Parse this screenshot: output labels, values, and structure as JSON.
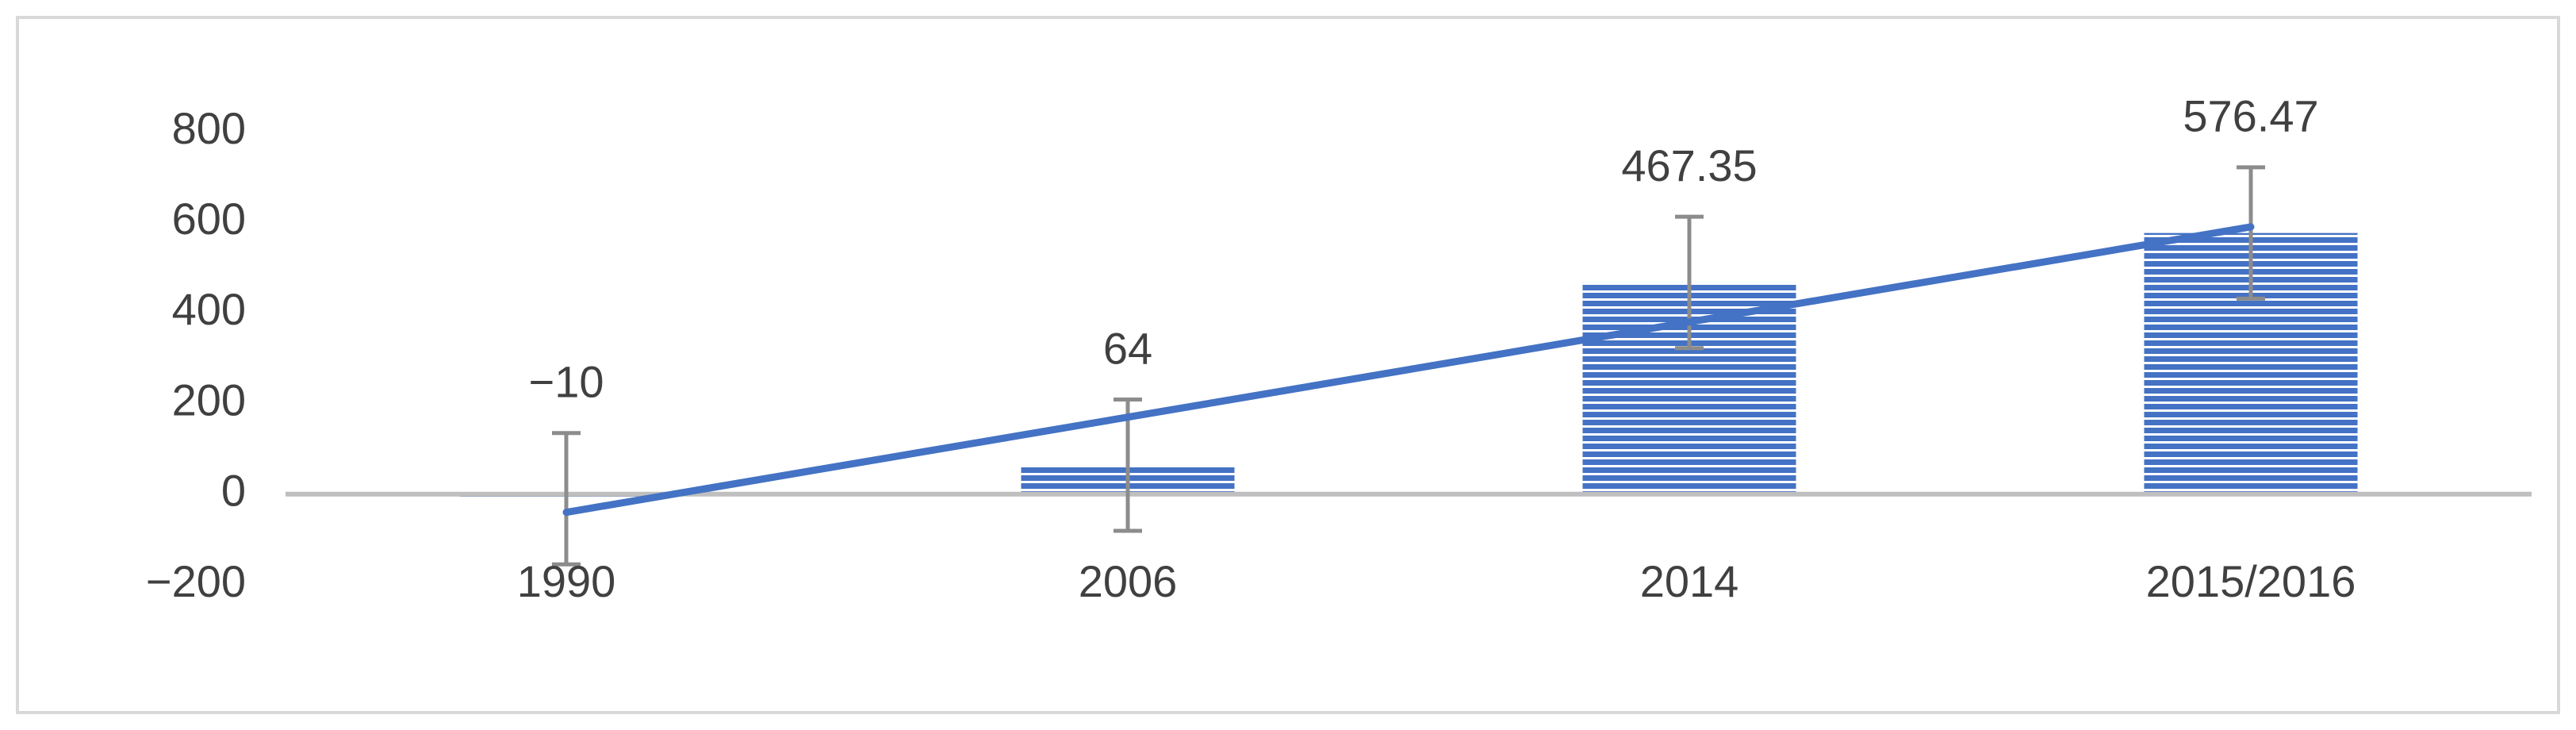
{
  "chart_data": {
    "type": "bar",
    "categories": [
      "1990",
      "2006",
      "2014",
      "2015/2016"
    ],
    "values": [
      -10,
      64,
      467.35,
      576.47
    ],
    "value_labels": [
      "−10",
      "64",
      "467.35",
      "576.47"
    ],
    "errors": [
      145,
      145,
      145,
      145
    ],
    "color": "#4472c4",
    "error_color": "#8c8c8c",
    "trendline": {
      "values": [
        -40,
        590
      ],
      "color": "#4472c4"
    },
    "ylim": [
      -200,
      800
    ],
    "yticks": [
      {
        "value": -200,
        "label": "−200"
      },
      0,
      200,
      400,
      600,
      800
    ],
    "grid": false
  }
}
